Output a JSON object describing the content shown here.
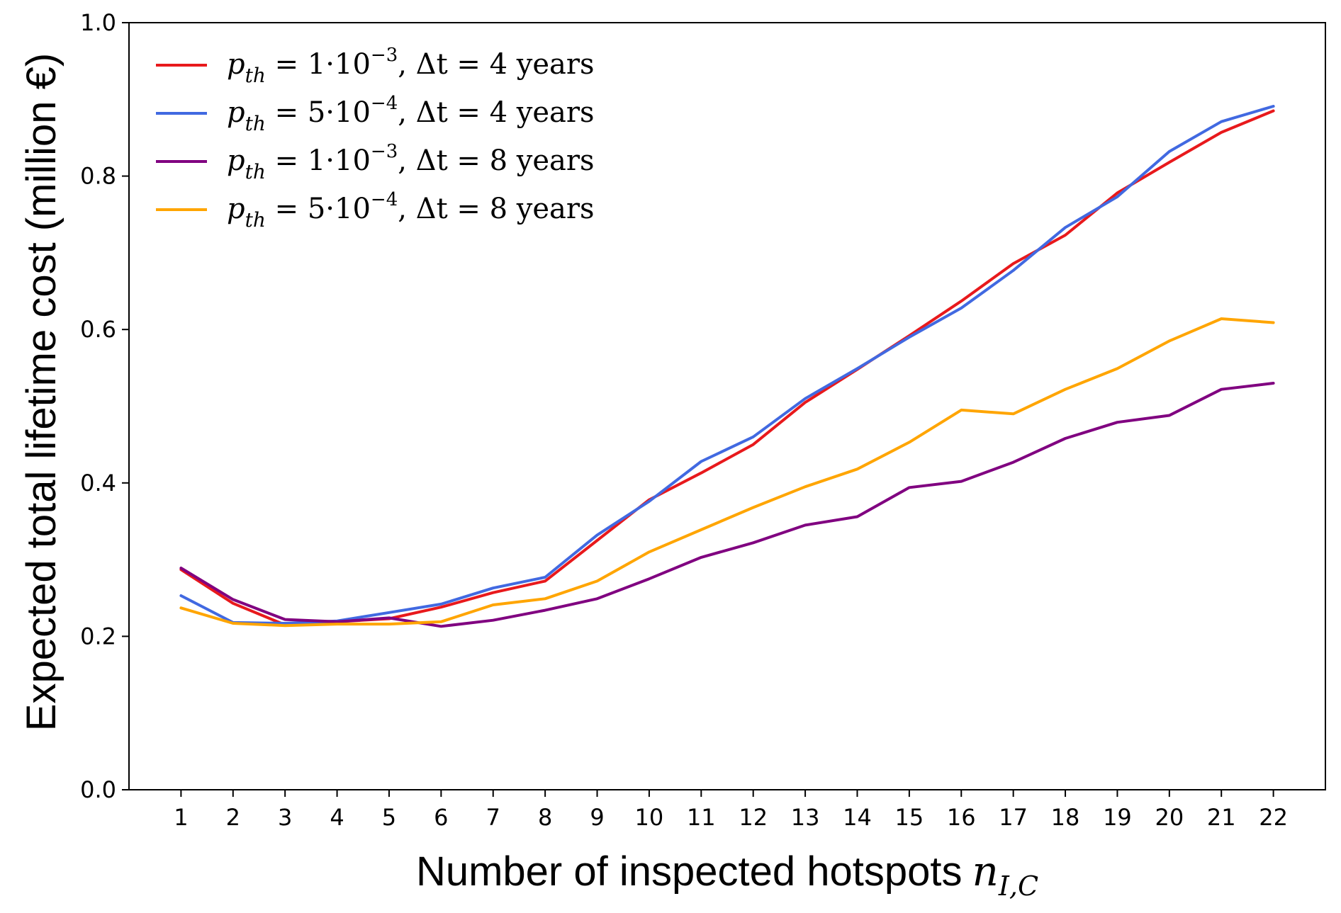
{
  "chart_data": {
    "type": "line",
    "title": "",
    "xlabel": "Number of inspected hotspots",
    "xlabel_math": {
      "base": "n",
      "sub": "I,C"
    },
    "ylabel": "Expected total lifetime cost (million €)",
    "xlim": [
      0,
      23
    ],
    "ylim": [
      0.0,
      1.0
    ],
    "x": [
      1,
      2,
      3,
      4,
      5,
      6,
      7,
      8,
      9,
      10,
      11,
      12,
      13,
      14,
      15,
      16,
      17,
      18,
      19,
      20,
      21,
      22
    ],
    "x_tick_labels": [
      "1",
      "2",
      "3",
      "4",
      "5",
      "6",
      "7",
      "8",
      "9",
      "10",
      "11",
      "12",
      "13",
      "14",
      "15",
      "16",
      "17",
      "18",
      "19",
      "20",
      "21",
      "22"
    ],
    "y_ticks": [
      0.0,
      0.2,
      0.4,
      0.6,
      0.8,
      1.0
    ],
    "y_tick_labels": [
      "0.0",
      "0.2",
      "0.4",
      "0.6",
      "0.8",
      "1.0"
    ],
    "grid": false,
    "legend_position": "top-left",
    "series": [
      {
        "name": "p_th = 1·10^-3, Δt = 4 years",
        "legend": {
          "p": "p",
          "sub": "th",
          "eq": " = 1·10",
          "exp": "−3",
          "dt": ", Δt = 4 years"
        },
        "color": "#e8191c",
        "values": [
          0.287,
          0.243,
          0.215,
          0.219,
          0.223,
          0.238,
          0.257,
          0.272,
          0.325,
          0.378,
          0.413,
          0.45,
          0.505,
          0.548,
          0.592,
          0.637,
          0.686,
          0.723,
          0.778,
          0.818,
          0.857,
          0.885
        ]
      },
      {
        "name": "p_th = 5·10^-4, Δt = 4 years",
        "legend": {
          "p": "p",
          "sub": "th",
          "eq": " = 5·10",
          "exp": "−4",
          "dt": ", Δt = 4 years"
        },
        "color": "#4169e1",
        "values": [
          0.253,
          0.218,
          0.217,
          0.22,
          0.231,
          0.242,
          0.263,
          0.277,
          0.332,
          0.376,
          0.428,
          0.46,
          0.51,
          0.549,
          0.59,
          0.628,
          0.677,
          0.733,
          0.773,
          0.832,
          0.871,
          0.891
        ]
      },
      {
        "name": "p_th = 1·10^-3, Δt = 8 years",
        "legend": {
          "p": "p",
          "sub": "th",
          "eq": " = 1·10",
          "exp": "−3",
          "dt": ", Δt = 8 years"
        },
        "color": "#800080",
        "values": [
          0.289,
          0.248,
          0.222,
          0.219,
          0.224,
          0.213,
          0.221,
          0.234,
          0.249,
          0.275,
          0.303,
          0.322,
          0.345,
          0.356,
          0.394,
          0.402,
          0.427,
          0.458,
          0.479,
          0.488,
          0.522,
          0.53
        ]
      },
      {
        "name": "p_th = 5·10^-4, Δt = 8 years",
        "legend": {
          "p": "p",
          "sub": "th",
          "eq": " = 5·10",
          "exp": "−4",
          "dt": ", Δt = 8 years"
        },
        "color": "#ffa500",
        "values": [
          0.237,
          0.217,
          0.214,
          0.216,
          0.216,
          0.219,
          0.241,
          0.249,
          0.272,
          0.31,
          0.339,
          0.368,
          0.395,
          0.418,
          0.453,
          0.495,
          0.49,
          0.522,
          0.549,
          0.585,
          0.614,
          0.609
        ]
      }
    ]
  }
}
